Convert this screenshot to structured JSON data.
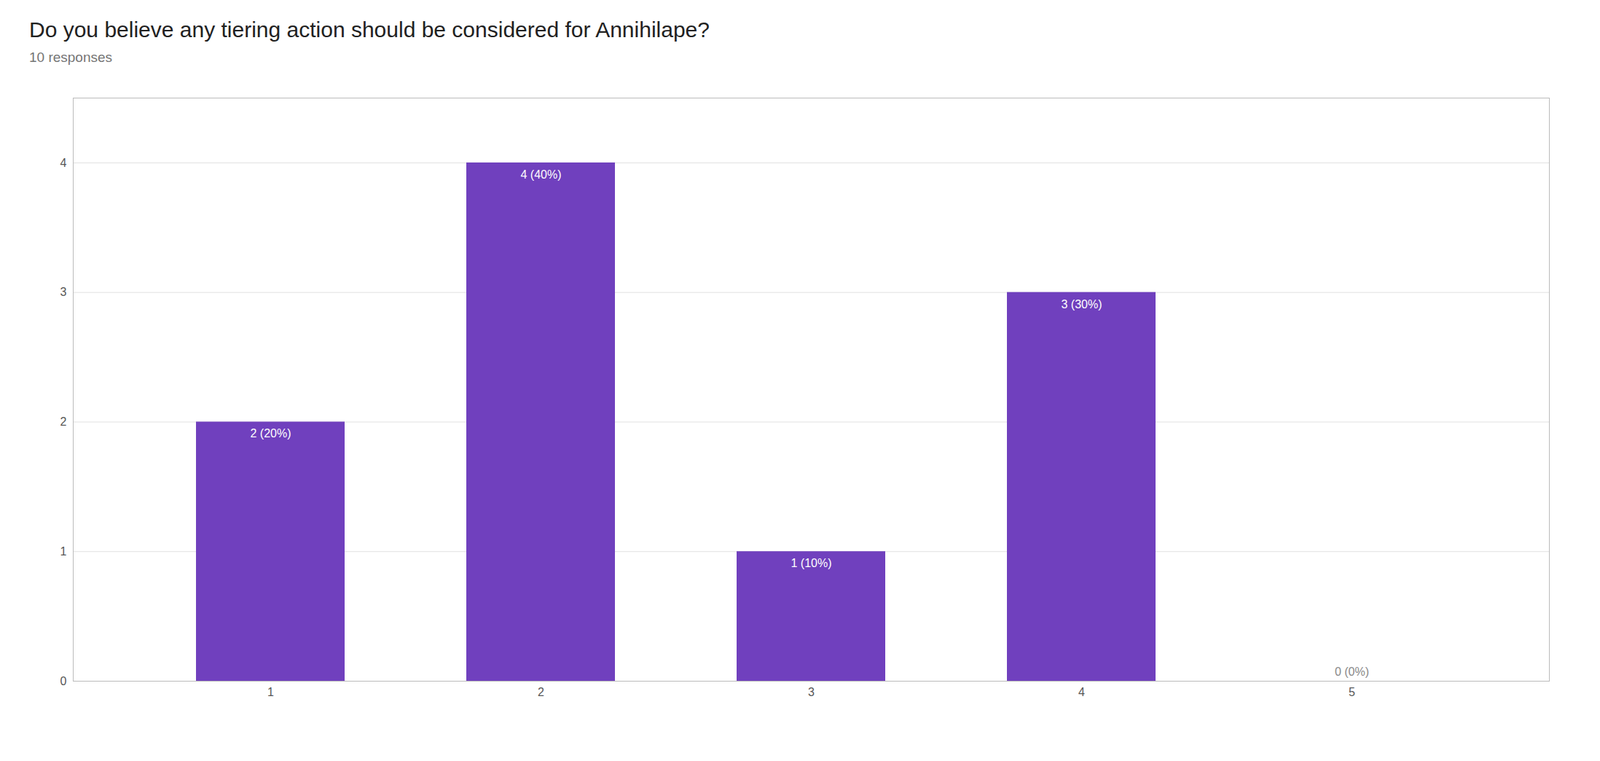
{
  "chart_data": {
    "type": "bar",
    "title": "Do you believe any tiering action should be considered for Annihilape?",
    "subtitle": "10 responses",
    "categories": [
      1,
      2,
      3,
      4,
      5
    ],
    "values": [
      2,
      4,
      1,
      3,
      0
    ],
    "value_labels": [
      "2 (20%)",
      "4 (40%)",
      "1 (10%)",
      "3 (30%)",
      "0 (0%)"
    ],
    "color": "#7040BE",
    "ylim": [
      0,
      4.5
    ],
    "yticks": [
      0,
      1,
      2,
      3,
      4
    ],
    "grid": true,
    "data_labels": true
  }
}
